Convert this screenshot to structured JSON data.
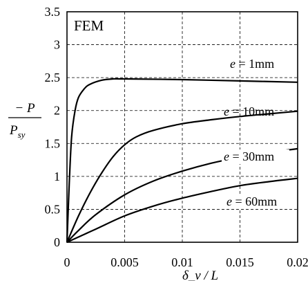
{
  "chart_data": {
    "type": "line",
    "title": "FEM",
    "xlabel": "δ_v / L",
    "ylabel_numerator": "− P",
    "ylabel_denominator": "P",
    "ylabel_denominator_sub": "sy",
    "xlim": [
      0,
      0.02
    ],
    "ylim": [
      0,
      3.5
    ],
    "grid": true,
    "x_ticks": [
      0,
      0.005,
      0.01,
      0.015,
      0.02
    ],
    "x_tick_labels": [
      "0",
      "0.005",
      "0.01",
      "0.015",
      "0.02"
    ],
    "y_ticks": [
      0,
      0.5,
      1,
      1.5,
      2,
      2.5,
      3,
      3.5
    ],
    "y_tick_labels": [
      "0",
      "0.5",
      "1",
      "1.5",
      "2",
      "2.5",
      "3",
      "3.5"
    ],
    "series": [
      {
        "name": "e = 1mm",
        "label_var": "e",
        "label_val": " = 1mm",
        "points": [
          [
            0,
            0
          ],
          [
            0.0002,
            0.9
          ],
          [
            0.0004,
            1.6
          ],
          [
            0.0007,
            2.0
          ],
          [
            0.001,
            2.2
          ],
          [
            0.0015,
            2.33
          ],
          [
            0.002,
            2.4
          ],
          [
            0.003,
            2.46
          ],
          [
            0.004,
            2.48
          ],
          [
            0.005,
            2.48
          ],
          [
            0.01,
            2.47
          ],
          [
            0.015,
            2.45
          ],
          [
            0.02,
            2.43
          ]
        ]
      },
      {
        "name": "e = 10mm",
        "label_var": "e",
        "label_val": " = 10mm",
        "points": [
          [
            0,
            0
          ],
          [
            0.001,
            0.4
          ],
          [
            0.002,
            0.75
          ],
          [
            0.003,
            1.05
          ],
          [
            0.004,
            1.3
          ],
          [
            0.005,
            1.48
          ],
          [
            0.006,
            1.6
          ],
          [
            0.0075,
            1.7
          ],
          [
            0.01,
            1.8
          ],
          [
            0.0125,
            1.86
          ],
          [
            0.015,
            1.91
          ],
          [
            0.0175,
            1.95
          ],
          [
            0.02,
            1.99
          ]
        ]
      },
      {
        "name": "e = 30mm",
        "label_var": "e",
        "label_val": " = 30mm",
        "points": [
          [
            0,
            0
          ],
          [
            0.001,
            0.18
          ],
          [
            0.0025,
            0.42
          ],
          [
            0.005,
            0.72
          ],
          [
            0.0075,
            0.93
          ],
          [
            0.01,
            1.08
          ],
          [
            0.0125,
            1.2
          ],
          [
            0.015,
            1.29
          ],
          [
            0.0175,
            1.36
          ],
          [
            0.02,
            1.42
          ]
        ]
      },
      {
        "name": "e = 60mm",
        "label_var": "e",
        "label_val": " = 60mm",
        "points": [
          [
            0,
            0
          ],
          [
            0.0025,
            0.2
          ],
          [
            0.005,
            0.4
          ],
          [
            0.0075,
            0.55
          ],
          [
            0.01,
            0.67
          ],
          [
            0.0125,
            0.77
          ],
          [
            0.015,
            0.86
          ],
          [
            0.0175,
            0.92
          ],
          [
            0.02,
            0.97
          ]
        ]
      }
    ]
  }
}
